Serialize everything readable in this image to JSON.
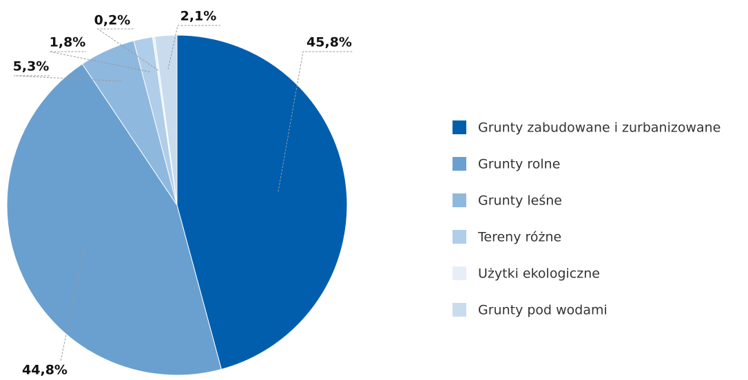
{
  "chart_data": {
    "type": "pie",
    "categories": [
      "Grunty zabudowane i zurbanizowane",
      "Grunty rolne",
      "Grunty leśne",
      "Tereny różne",
      "Użytki ekologiczne",
      "Grunty pod wodami"
    ],
    "values": [
      45.8,
      44.8,
      5.3,
      1.8,
      0.2,
      2.1
    ],
    "value_labels": [
      "45,8%",
      "44,8%",
      "5,3%",
      "1,8%",
      "0,2%",
      "2,1%"
    ],
    "colors": [
      "#005ead",
      "#6aa0cf",
      "#8fb8de",
      "#b0cde9",
      "#e6eff8",
      "#c8dcee"
    ]
  }
}
